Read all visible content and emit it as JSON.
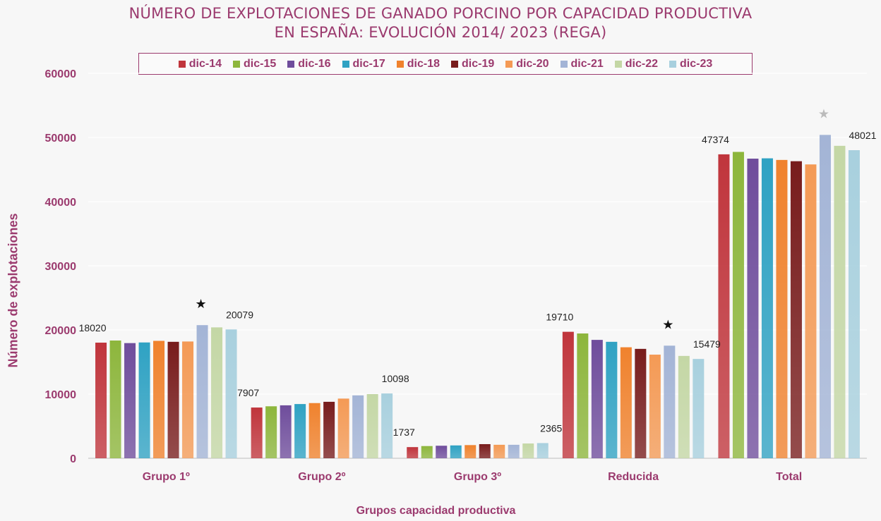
{
  "title_lines": [
    "NÚMERO DE EXPLOTACIONES DE GANADO PORCINO POR CAPACIDAD PRODUCTIVA",
    "EN ESPAÑA: EVOLUCIÓN 2014/ 2023 (REGA)"
  ],
  "chart_data": {
    "type": "bar",
    "title": "NÚMERO DE EXPLOTACIONES DE GANADO PORCINO POR CAPACIDAD PRODUCTIVA EN ESPAÑA: EVOLUCIÓN 2014/ 2023 (REGA)",
    "xlabel": "Grupos capacidad productiva",
    "ylabel": "Número de explotaciones",
    "ylim": [
      0,
      60000
    ],
    "yticks": [
      0,
      10000,
      20000,
      30000,
      40000,
      50000,
      60000
    ],
    "grid": true,
    "legend_position": "top",
    "categories": [
      "Grupo 1º",
      "Grupo 2º",
      "Grupo 3º",
      "Reducida",
      "Total"
    ],
    "series": [
      {
        "name": "dic-14",
        "color": "#c0353c",
        "values": [
          18020,
          7907,
          1737,
          19710,
          47374
        ]
      },
      {
        "name": "dic-15",
        "color": "#8db63c",
        "values": [
          18350,
          8100,
          1900,
          19450,
          47750
        ]
      },
      {
        "name": "dic-16",
        "color": "#6f4d9c",
        "values": [
          17950,
          8250,
          1950,
          18450,
          46700
        ]
      },
      {
        "name": "dic-17",
        "color": "#2fa2c3",
        "values": [
          18050,
          8450,
          2000,
          18150,
          46750
        ]
      },
      {
        "name": "dic-18",
        "color": "#f0822d",
        "values": [
          18300,
          8600,
          2050,
          17300,
          46500
        ]
      },
      {
        "name": "dic-19",
        "color": "#781c1c",
        "values": [
          18150,
          8800,
          2200,
          17050,
          46300
        ]
      },
      {
        "name": "dic-20",
        "color": "#f49a55",
        "values": [
          18200,
          9300,
          2100,
          16150,
          45800
        ]
      },
      {
        "name": "dic-21",
        "color": "#a3b4d6",
        "values": [
          20750,
          9800,
          2100,
          17550,
          50400
        ]
      },
      {
        "name": "dic-22",
        "color": "#c4d7a5",
        "values": [
          20400,
          10000,
          2300,
          15950,
          48700
        ]
      },
      {
        "name": "dic-23",
        "color": "#a8d0de",
        "values": [
          20079,
          10098,
          2365,
          15479,
          48021
        ]
      }
    ],
    "data_labels": [
      {
        "category": "Grupo 1º",
        "series": "dic-14",
        "text": "18020"
      },
      {
        "category": "Grupo 1º",
        "series": "dic-23",
        "text": "20079"
      },
      {
        "category": "Grupo 2º",
        "series": "dic-14",
        "text": "7907"
      },
      {
        "category": "Grupo 2º",
        "series": "dic-23",
        "text": "10098"
      },
      {
        "category": "Grupo 3º",
        "series": "dic-14",
        "text": "1737"
      },
      {
        "category": "Grupo 3º",
        "series": "dic-23",
        "text": "2365"
      },
      {
        "category": "Reducida",
        "series": "dic-14",
        "text": "19710"
      },
      {
        "category": "Reducida",
        "series": "dic-23",
        "text": "15479"
      },
      {
        "category": "Total",
        "series": "dic-14",
        "text": "47374"
      },
      {
        "category": "Total",
        "series": "dic-23",
        "text": "48021"
      }
    ],
    "annotations": [
      {
        "category": "Grupo 1º",
        "series": "dic-21",
        "symbol": "★",
        "color": "#111111"
      },
      {
        "category": "Reducida",
        "series": "dic-21",
        "symbol": "★",
        "color": "#111111"
      },
      {
        "category": "Total",
        "series": "dic-21",
        "symbol": "★",
        "color": "#bbbbbb"
      }
    ]
  }
}
